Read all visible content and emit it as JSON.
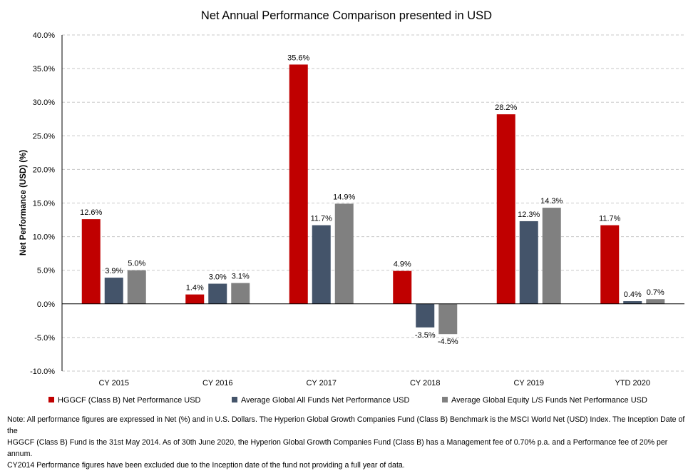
{
  "chart_data": {
    "type": "bar",
    "title": "Net Annual Performance Comparison presented in USD",
    "ylabel": "Net Performance (USD) (%)",
    "xlabel": "",
    "ylim": [
      -10,
      40
    ],
    "ytick_step": 5,
    "ytick_labels": [
      "-10.0%",
      "-5.0%",
      "0.0%",
      "5.0%",
      "10.0%",
      "15.0%",
      "20.0%",
      "25.0%",
      "30.0%",
      "35.0%",
      "40.0%"
    ],
    "grid": true,
    "legend_position": "bottom",
    "categories": [
      "CY 2015",
      "CY 2016",
      "CY 2017",
      "CY 2018",
      "CY 2019",
      "YTD 2020"
    ],
    "series": [
      {
        "name": "HGGCF (Class B) Net Performance USD",
        "color": "#c00000",
        "values": [
          12.6,
          1.4,
          35.6,
          4.9,
          28.2,
          11.7
        ],
        "labels": [
          "12.6%",
          "1.4%",
          "35.6%",
          "4.9%",
          "28.2%",
          "11.7%"
        ]
      },
      {
        "name": "Average Global All Funds Net Performance USD",
        "color": "#44546a",
        "values": [
          3.9,
          3.0,
          11.7,
          -3.5,
          12.3,
          0.4
        ],
        "labels": [
          "3.9%",
          "3.0%",
          "11.7%",
          "-3.5%",
          "12.3%",
          "0.4%"
        ]
      },
      {
        "name": "Average Global Equity L/S Funds Net Performance USD",
        "color": "#808080",
        "values": [
          5.0,
          3.1,
          14.9,
          -4.5,
          14.3,
          0.7
        ],
        "labels": [
          "5.0%",
          "3.1%",
          "14.9%",
          "-4.5%",
          "14.3%",
          "0.7%"
        ]
      }
    ]
  },
  "note": {
    "lines": [
      "Note: All performance figures are expressed in Net (%) and in U.S. Dollars. The Hyperion Global Growth Companies Fund (Class B) Benchmark is the MSCI World Net (USD) Index. The Inception Date of the",
      "HGGCF (Class B) Fund is the 31st May 2014. As of 30th June 2020, the Hyperion Global Growth Companies Fund (Class B) has a Management fee of 0.70% p.a. and a Performance fee of 20% per annum.",
      "CY2014 Performance figures have been excluded due to the Inception date of the fund not providing a full year of data."
    ]
  }
}
